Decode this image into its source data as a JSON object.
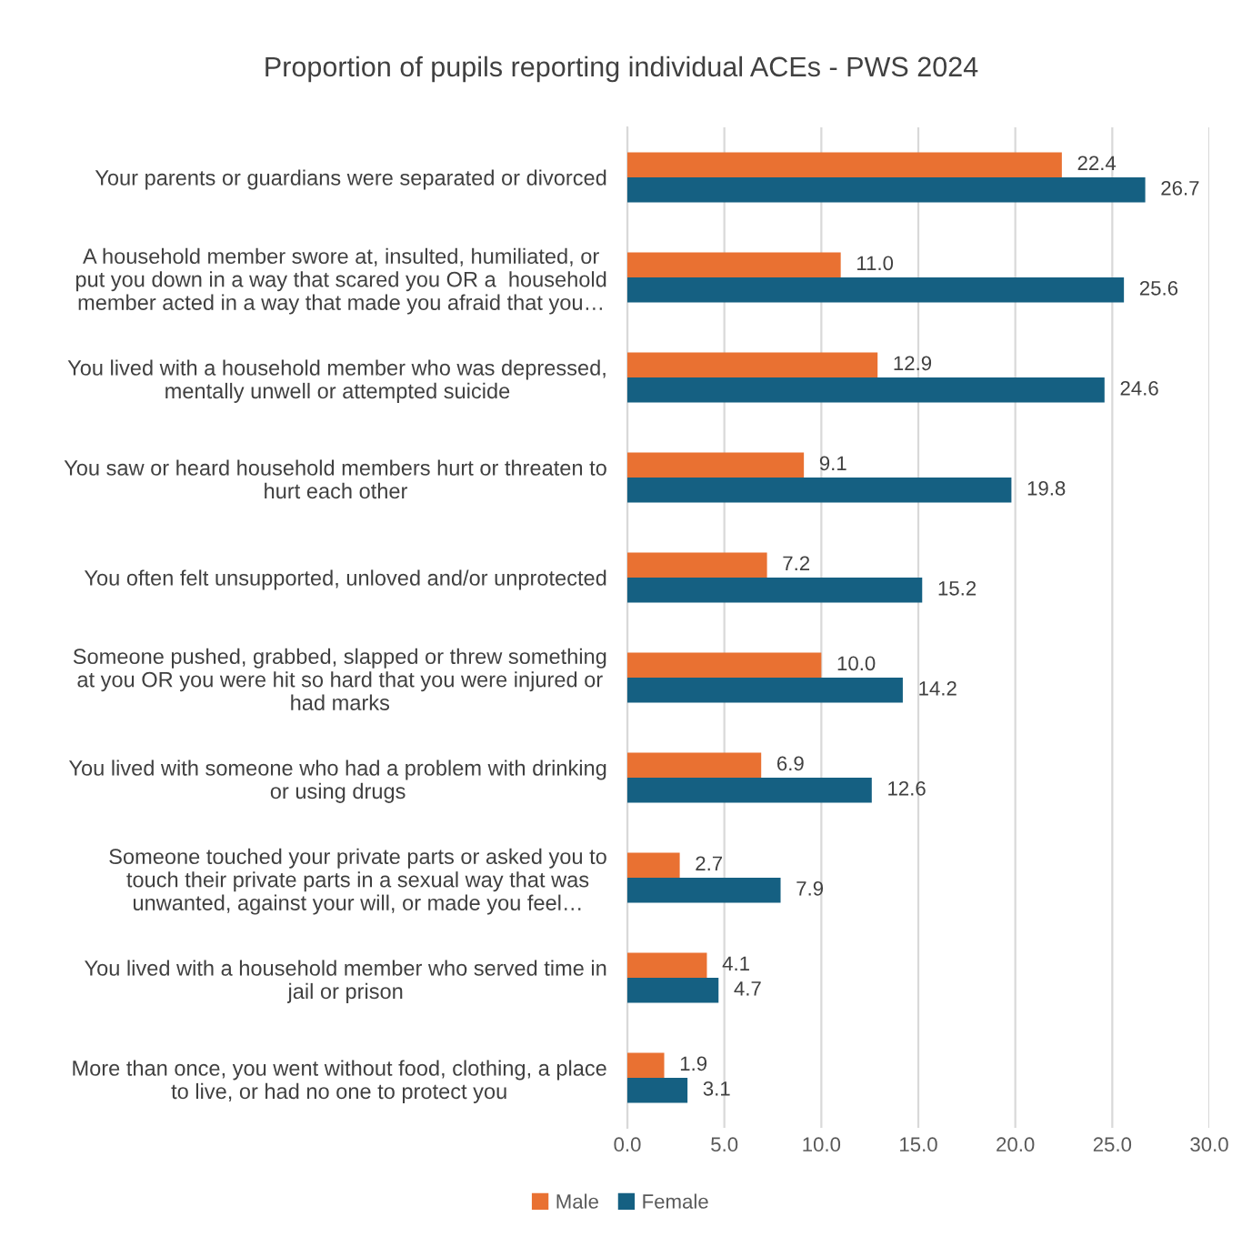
{
  "chart_data": {
    "type": "bar",
    "orientation": "horizontal",
    "title": "Proportion of pupils reporting individual ACEs - PWS 2024",
    "categories": [
      "Your parents or guardians were separated or divorced",
      "A household member swore at, insulted, humiliated, or\nput you down in a way that scared you OR a  household\nmember acted in a way that made you afraid that you…",
      "You lived with a household member who was depressed,\nmentally unwell or attempted suicide",
      "You saw or heard household members hurt or threaten to\nhurt each other",
      "You often felt unsupported, unloved and/or unprotected",
      "Someone pushed, grabbed, slapped or threw something\nat you OR you were hit so hard that you were injured or\nhad marks",
      "You lived with someone who had a problem with drinking\nor using drugs",
      "Someone touched your private parts or asked you to\ntouch their private parts in a sexual way that was\nunwanted, against your will, or made you feel…",
      "You lived with a household member who served time in\njail or prison",
      "More than once, you went without food, clothing, a place\nto live, or had no one to protect you"
    ],
    "series": [
      {
        "name": "Male",
        "color": "#e97132",
        "values": [
          22.4,
          11.0,
          12.9,
          9.1,
          7.2,
          10.0,
          6.9,
          2.7,
          4.1,
          1.9
        ],
        "value_labels": [
          "22.4",
          "11.0",
          "12.9",
          "9.1",
          "7.2",
          "10.0",
          "6.9",
          "2.7",
          "4.1",
          "1.9"
        ]
      },
      {
        "name": "Female",
        "color": "#156082",
        "values": [
          26.7,
          25.6,
          24.6,
          19.8,
          15.2,
          14.2,
          12.6,
          7.9,
          4.7,
          3.1
        ],
        "value_labels": [
          "26.7",
          "25.6",
          "24.6",
          "19.8",
          "15.2",
          "14.2",
          "12.6",
          "7.9",
          "4.7",
          "3.1"
        ]
      }
    ],
    "xlim": [
      0,
      30
    ],
    "xticks": [
      {
        "value": 0,
        "label": "0.0"
      },
      {
        "value": 5,
        "label": "5.0"
      },
      {
        "value": 10,
        "label": "10.0"
      },
      {
        "value": 15,
        "label": "15.0"
      },
      {
        "value": 20,
        "label": "20.0"
      },
      {
        "value": 25,
        "label": "25.0"
      },
      {
        "value": 30,
        "label": "30.0"
      }
    ],
    "grid": "x",
    "legend": "bottom"
  }
}
